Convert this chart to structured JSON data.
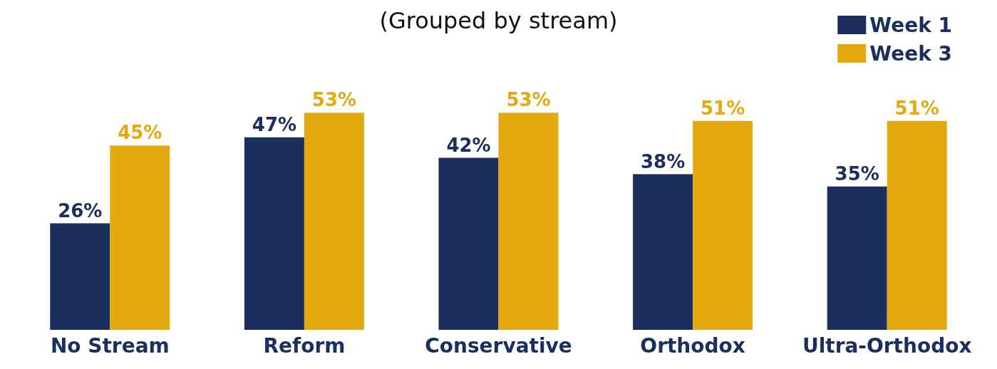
{
  "chart_data": {
    "type": "bar",
    "title": "(Grouped by stream)",
    "categories": [
      "No Stream",
      "Reform",
      "Conservative",
      "Orthodox",
      "Ultra-Orthodox"
    ],
    "series": [
      {
        "name": "Week 1",
        "color": "#1b2f5f",
        "values": [
          26,
          47,
          42,
          38,
          35
        ],
        "value_labels": [
          "26%",
          "47%",
          "42%",
          "38%",
          "35%"
        ]
      },
      {
        "name": "Week 3",
        "color": "#e3a90f",
        "values": [
          45,
          53,
          53,
          51,
          51
        ],
        "value_labels": [
          "45%",
          "53%",
          "53%",
          "51%",
          "51%"
        ]
      }
    ],
    "legend": "top right"
  }
}
